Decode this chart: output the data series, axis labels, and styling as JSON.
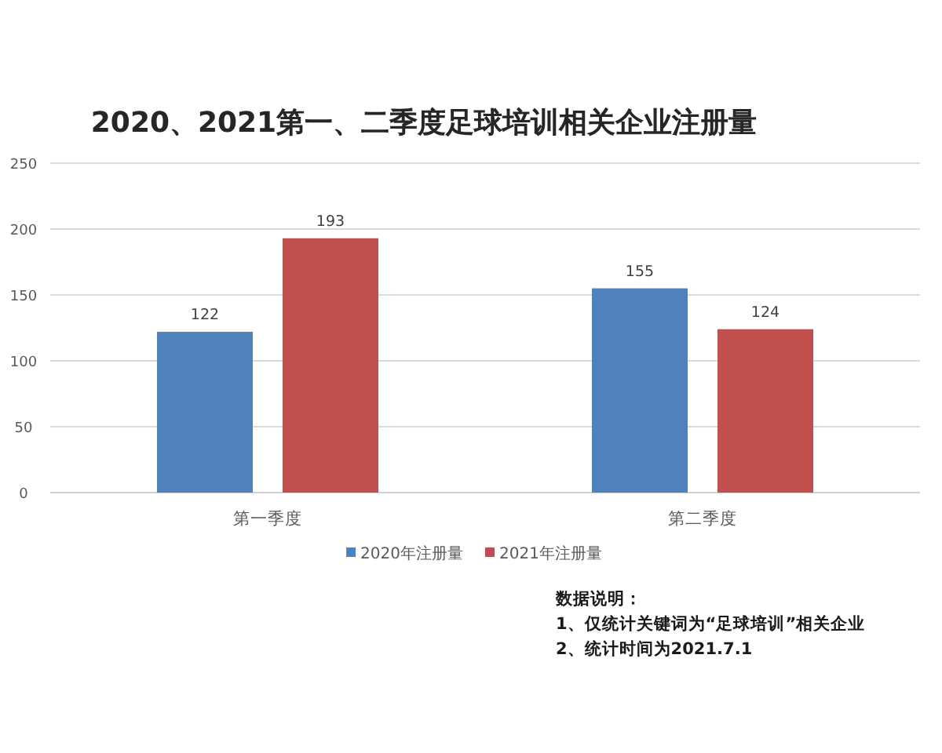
{
  "chart_data": {
    "type": "bar",
    "title": "2020、2021第一、二季度足球培训相关企业注册量",
    "categories": [
      "第一季度",
      "第二季度"
    ],
    "series": [
      {
        "name": "2020年注册量",
        "color": "#4f81bd",
        "values": [
          122,
          155
        ]
      },
      {
        "name": "2021年注册量",
        "color": "#c0504d",
        "values": [
          193,
          124
        ]
      }
    ],
    "ylim": [
      0,
      250
    ],
    "yticks": [
      0,
      50,
      100,
      150,
      200,
      250
    ],
    "grid": "y",
    "legend": "bottom",
    "data_labels": true,
    "annotations": [
      "数据说明：",
      "1、仅统计关键词为“足球培训”相关企业",
      "2、统计时间为2021.7.1"
    ]
  }
}
